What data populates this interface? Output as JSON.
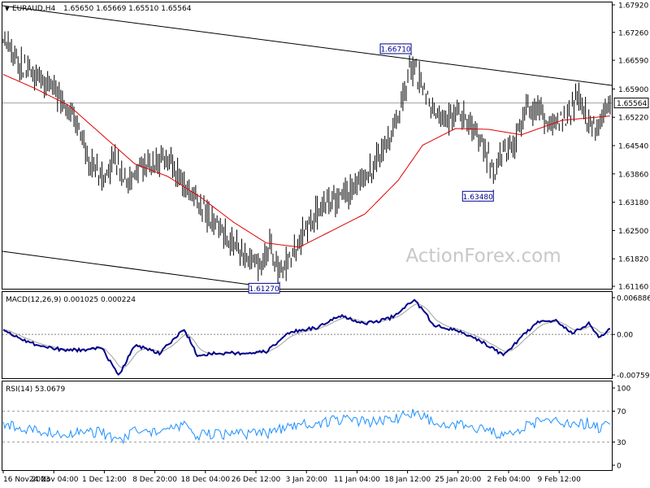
{
  "header": {
    "symbol_label": "EURAUD,H4",
    "ohlc": "1.65650 1.65669 1.65510 1.65564"
  },
  "colors": {
    "background": "#ffffff",
    "frame": "#000000",
    "candle": "#000000",
    "ma_line": "#e00000",
    "macd_line": "#00008b",
    "signal_line": "#a0a0a0",
    "rsi_line": "#1e90ff",
    "current_price_line": "#a0a0a0",
    "channel_line": "#000000",
    "watermark": "#c8c8c8"
  },
  "watermark": "ActionForex.com",
  "price_panel": {
    "y_ticks": [
      "1.67920",
      "1.67260",
      "1.66590",
      "1.65900",
      "1.65220",
      "1.64540",
      "1.63860",
      "1.63180",
      "1.62500",
      "1.61820",
      "1.61160"
    ],
    "current_price": "1.65564",
    "annotations": [
      {
        "label": "1.66710",
        "price": 1.6671
      },
      {
        "label": "1.63480",
        "price": 1.6348
      },
      {
        "label": "1.61270",
        "price": 1.6127
      }
    ]
  },
  "macd_panel": {
    "label": "MACD(12,26,9) 0.001025 0.000224",
    "y_ticks": [
      "0.006886",
      "0.00",
      "-0.007591"
    ]
  },
  "rsi_panel": {
    "label": "RSI(14) 53.0679",
    "y_ticks": [
      "100",
      "70",
      "30",
      "0"
    ]
  },
  "x_axis": {
    "labels": [
      "16 Nov 2023",
      "24 Nov 04:00",
      "1 Dec 12:00",
      "8 Dec 20:00",
      "18 Dec 04:00",
      "26 Dec 12:00",
      "3 Jan 20:00",
      "11 Jan 04:00",
      "18 Jan 12:00",
      "25 Jan 20:00",
      "2 Feb 04:00",
      "9 Feb 12:00"
    ]
  },
  "chart_data": {
    "type": "candlestick",
    "symbol": "EURAUD",
    "timeframe": "H4",
    "price_ylim": [
      1.6116,
      1.6792
    ],
    "anchors": [
      [
        0,
        1.672
      ],
      [
        10,
        1.665
      ],
      [
        22,
        1.661
      ],
      [
        33,
        1.658
      ],
      [
        43,
        1.652
      ],
      [
        53,
        1.641
      ],
      [
        60,
        1.638
      ],
      [
        68,
        1.642
      ],
      [
        76,
        1.637
      ],
      [
        84,
        1.64
      ],
      [
        92,
        1.641
      ],
      [
        100,
        1.643
      ],
      [
        110,
        1.636
      ],
      [
        120,
        1.631
      ],
      [
        130,
        1.626
      ],
      [
        140,
        1.622
      ],
      [
        150,
        1.618
      ],
      [
        156,
        1.617
      ],
      [
        162,
        1.621
      ],
      [
        168,
        1.615
      ],
      [
        174,
        1.618
      ],
      [
        182,
        1.624
      ],
      [
        190,
        1.629
      ],
      [
        200,
        1.632
      ],
      [
        210,
        1.634
      ],
      [
        220,
        1.638
      ],
      [
        232,
        1.645
      ],
      [
        242,
        1.656
      ],
      [
        248,
        1.664
      ],
      [
        254,
        1.661
      ],
      [
        262,
        1.654
      ],
      [
        270,
        1.652
      ],
      [
        280,
        1.653
      ],
      [
        286,
        1.649
      ],
      [
        292,
        1.645
      ],
      [
        298,
        1.639
      ],
      [
        304,
        1.644
      ],
      [
        312,
        1.647
      ],
      [
        318,
        1.655
      ],
      [
        326,
        1.653
      ],
      [
        334,
        1.651
      ],
      [
        342,
        1.652
      ],
      [
        350,
        1.657
      ],
      [
        356,
        1.651
      ],
      [
        362,
        1.649
      ],
      [
        366,
        1.654
      ],
      [
        369,
        1.6556
      ]
    ],
    "ma_anchors": [
      [
        0,
        1.6625
      ],
      [
        20,
        1.659
      ],
      [
        40,
        1.655
      ],
      [
        60,
        1.648
      ],
      [
        80,
        1.641
      ],
      [
        100,
        1.638
      ],
      [
        120,
        1.633
      ],
      [
        140,
        1.627
      ],
      [
        160,
        1.622
      ],
      [
        180,
        1.621
      ],
      [
        200,
        1.625
      ],
      [
        220,
        1.629
      ],
      [
        240,
        1.637
      ],
      [
        255,
        1.6455
      ],
      [
        275,
        1.6495
      ],
      [
        295,
        1.6493
      ],
      [
        315,
        1.648
      ],
      [
        340,
        1.6515
      ],
      [
        369,
        1.6525
      ]
    ],
    "macd_ylim": [
      -0.007591,
      0.006886
    ],
    "macd_anchors": [
      [
        0,
        0.0008
      ],
      [
        20,
        -0.002
      ],
      [
        35,
        -0.0028
      ],
      [
        50,
        -0.003
      ],
      [
        60,
        -0.0025
      ],
      [
        70,
        -0.0078
      ],
      [
        80,
        -0.002
      ],
      [
        95,
        -0.0035
      ],
      [
        110,
        0.001
      ],
      [
        118,
        -0.004
      ],
      [
        130,
        -0.0035
      ],
      [
        145,
        -0.0035
      ],
      [
        160,
        -0.0032
      ],
      [
        175,
        0.0005
      ],
      [
        190,
        0.0012
      ],
      [
        205,
        0.0035
      ],
      [
        220,
        0.002
      ],
      [
        235,
        0.003
      ],
      [
        250,
        0.0065
      ],
      [
        262,
        0.0018
      ],
      [
        278,
        0.0005
      ],
      [
        292,
        -0.0015
      ],
      [
        304,
        -0.004
      ],
      [
        316,
        -0.0002
      ],
      [
        326,
        0.0025
      ],
      [
        336,
        0.0025
      ],
      [
        346,
        0.0002
      ],
      [
        356,
        0.002
      ],
      [
        362,
        -0.0005
      ],
      [
        369,
        0.001
      ]
    ],
    "macd_current": 0.001025,
    "signal_current": 0.000224,
    "rsi_ylim": [
      0,
      100
    ],
    "rsi_current": 53.0679,
    "rsi_levels": [
      70,
      30
    ]
  }
}
